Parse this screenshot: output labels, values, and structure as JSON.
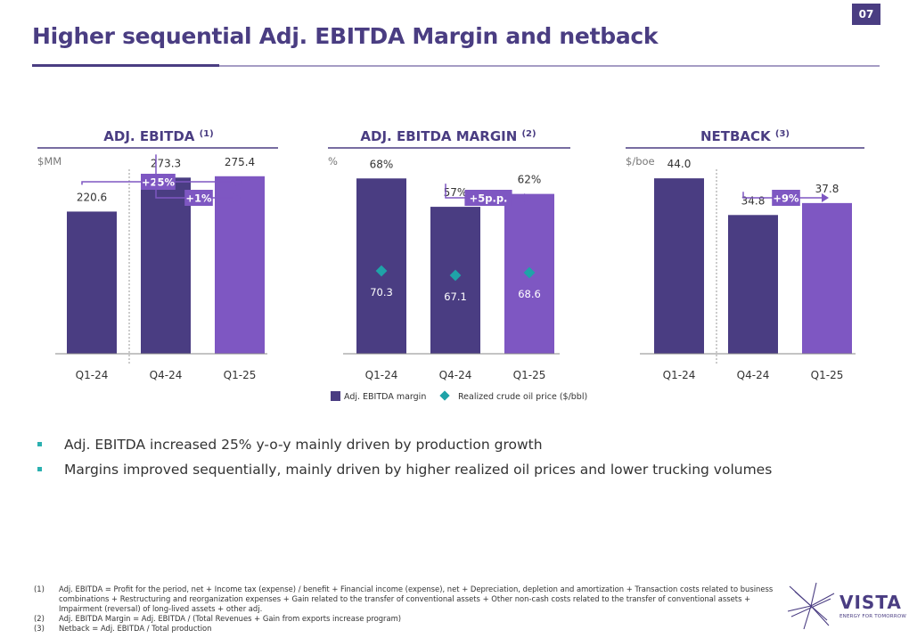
{
  "page": {
    "number": "07",
    "title": "Higher sequential Adj. EBITDA Margin and netback"
  },
  "colors": {
    "dark_bar": "#4a3d82",
    "light_bar": "#7e57c2",
    "marker": "#1fa3a8",
    "heading": "#4a3d82"
  },
  "chart_data": [
    {
      "type": "bar",
      "title": "ADJ. EBITDA",
      "title_note": "(1)",
      "unit_label": "$MM",
      "categories": [
        "Q1-24",
        "Q4-24",
        "Q1-25"
      ],
      "values": [
        220.6,
        273.3,
        275.4
      ],
      "labels": [
        "220.6",
        "273.3",
        "275.4"
      ],
      "ylim": [
        0,
        300
      ],
      "bar_tones": [
        "dark",
        "dark",
        "light"
      ],
      "annotations": [
        {
          "text": "+25%",
          "from": 0,
          "to": 2,
          "level": 2
        },
        {
          "text": "+1%",
          "from": 1,
          "to": 2,
          "level": 1
        }
      ]
    },
    {
      "type": "bar",
      "title": "ADJ. EBITDA MARGIN",
      "title_note": "(2)",
      "unit_label": "%",
      "categories": [
        "Q1-24",
        "Q4-24",
        "Q1-25"
      ],
      "values": [
        68,
        57,
        62
      ],
      "labels": [
        "68%",
        "57%",
        "62%"
      ],
      "ylim": [
        0,
        75
      ],
      "bar_tones": [
        "dark",
        "dark",
        "light"
      ],
      "series2": {
        "name": "Realized crude oil price ($/bbl)",
        "values": [
          70.3,
          67.1,
          68.6
        ],
        "labels": [
          "70.3",
          "67.1",
          "68.6"
        ]
      },
      "annotations": [
        {
          "text": "+5p.p.",
          "from": 1,
          "to": 2,
          "level": 1
        }
      ],
      "legend": {
        "bar": "Adj. EBITDA margin",
        "marker": "Realized crude oil price ($/bbl)"
      }
    },
    {
      "type": "bar",
      "title": "NETBACK",
      "title_note": "(3)",
      "unit_label": "$/boe",
      "categories": [
        "Q1-24",
        "Q4-24",
        "Q1-25"
      ],
      "values": [
        44.0,
        34.8,
        37.8
      ],
      "labels": [
        "44.0",
        "34.8",
        "37.8"
      ],
      "ylim": [
        0,
        48.5
      ],
      "bar_tones": [
        "dark",
        "dark",
        "light"
      ],
      "annotations": [
        {
          "text": "+9%",
          "from": 1,
          "to": 2,
          "level": 1
        }
      ]
    }
  ],
  "bullets": [
    "Adj. EBITDA increased 25% y-o-y mainly driven by production growth",
    "Margins improved sequentially, mainly driven by higher realized oil prices and lower trucking volumes"
  ],
  "footnotes": [
    {
      "num": "(1)",
      "text": "Adj. EBITDA = Profit for the period, net + Income tax (expense) / benefit + Financial income (expense), net + Depreciation, depletion and amortization + Transaction costs related to business combinations + Restructuring and reorganization expenses + Gain related to the transfer of conventional assets + Other non-cash costs related to the transfer of conventional assets + Impairment (reversal) of long-lived assets + other adj."
    },
    {
      "num": "(2)",
      "text": "Adj. EBITDA Margin = Adj. EBITDA / (Total Revenues + Gain from exports increase program)"
    },
    {
      "num": "(3)",
      "text": "Netback = Adj. EBITDA / Total production"
    }
  ],
  "logo": {
    "word": "VISTA",
    "tagline": "ENERGY FOR TOMORROW",
    "icon": "star-burst-icon"
  }
}
